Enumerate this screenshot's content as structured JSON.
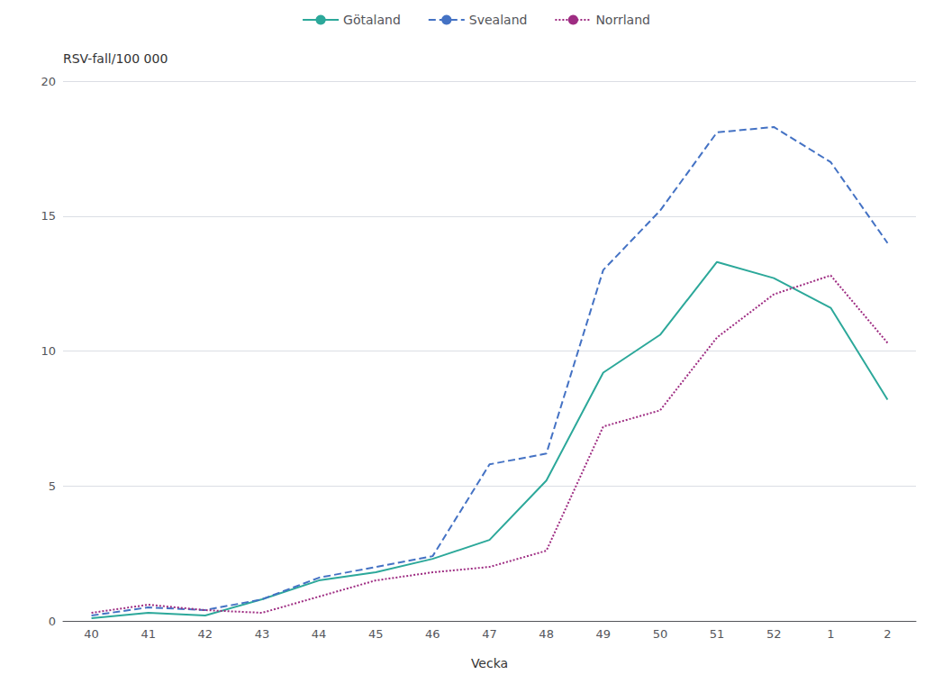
{
  "chart_data": {
    "type": "line",
    "xlabel": "Vecka",
    "ylabel": "RSV-fall/100 000",
    "categories": [
      "40",
      "41",
      "42",
      "43",
      "44",
      "45",
      "46",
      "47",
      "48",
      "49",
      "50",
      "51",
      "52",
      "1",
      "2"
    ],
    "series": [
      {
        "name": "Götaland",
        "color": "#2ca89a",
        "line_style": "solid",
        "values": [
          0.1,
          0.3,
          0.2,
          0.8,
          1.5,
          1.8,
          2.3,
          3.0,
          5.2,
          9.2,
          10.6,
          13.3,
          12.7,
          11.6,
          8.2
        ]
      },
      {
        "name": "Svealand",
        "color": "#4472c4",
        "line_style": "dashed",
        "values": [
          0.2,
          0.5,
          0.4,
          0.8,
          1.6,
          2.0,
          2.4,
          5.8,
          6.2,
          13.0,
          15.2,
          18.1,
          18.3,
          17.0,
          14.0
        ]
      },
      {
        "name": "Norrland",
        "color": "#9e2c82",
        "line_style": "dotted",
        "values": [
          0.3,
          0.6,
          0.4,
          0.3,
          0.9,
          1.5,
          1.8,
          2.0,
          2.6,
          7.2,
          7.8,
          10.5,
          12.1,
          12.8,
          10.3
        ]
      }
    ],
    "ylim": [
      0,
      20
    ],
    "yticks": [
      0,
      5,
      10,
      15,
      20
    ],
    "grid": true,
    "legend": "top"
  }
}
